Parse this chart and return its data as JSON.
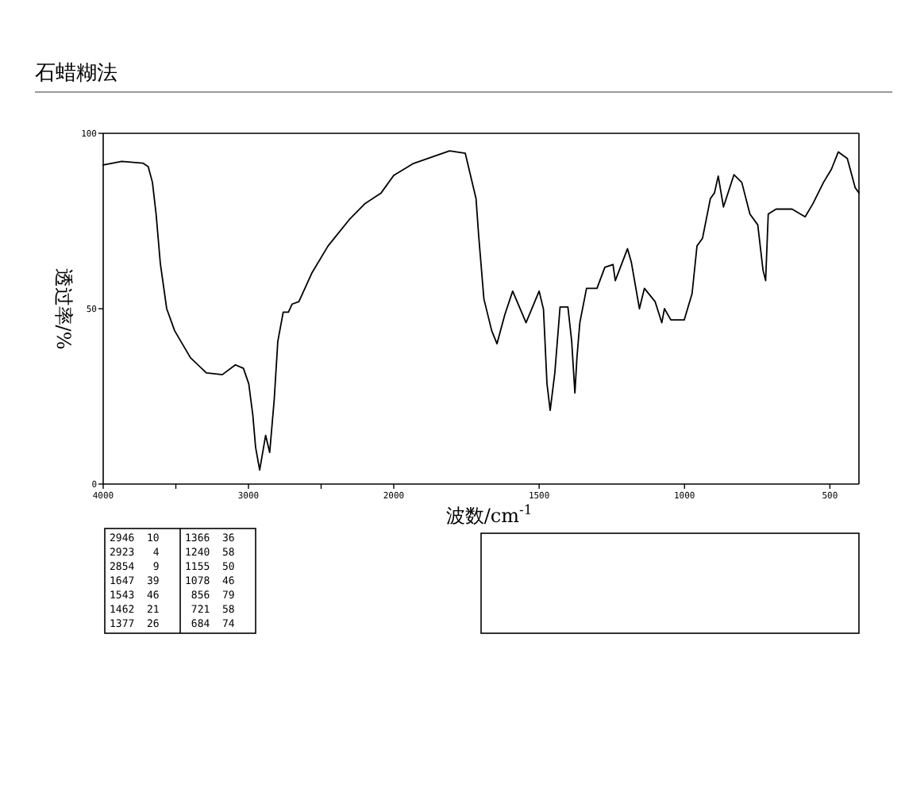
{
  "chart_data": [
    {
      "type": "line",
      "title": "石蜡糊法",
      "ylabel": "透过率/%",
      "xlim": [
        4000,
        2000
      ],
      "ylim": [
        0,
        100
      ],
      "xticks": [
        4000,
        {
          "value": 3500,
          "label": null
        },
        3000,
        {
          "value": 2500,
          "label": null
        },
        2000
      ],
      "yticks": [
        0,
        50,
        100
      ],
      "series": [
        {
          "color": "#000000",
          "x": [
            4000,
            3872,
            3727,
            3690,
            3661,
            3636,
            3607,
            3563,
            3508,
            3399,
            3290,
            3180,
            3090,
            3035,
            2998,
            2970,
            2951,
            2923,
            2882,
            2854,
            2823,
            2798,
            2761,
            2725,
            2700,
            2653,
            2562,
            2452,
            2306,
            2197,
            2087,
            2000
          ],
          "values": [
            91,
            92,
            91.5,
            90.5,
            86,
            77,
            63,
            50,
            43.7,
            36,
            31.7,
            31.2,
            34,
            33,
            28.6,
            19.6,
            10.5,
            4,
            13.9,
            9,
            24,
            40.7,
            49,
            49,
            51.3,
            52,
            60.3,
            67.9,
            75.4,
            80,
            83,
            88
          ]
        }
      ],
      "annotations": [
        "2946  10",
        "2923   4",
        "2854   9",
        "1647  39",
        "1543  46",
        "1462  21",
        "1377  26",
        "1366  36",
        "1240  58",
        "1155  50",
        "1078  46",
        " 856  79",
        " 721  58",
        " 684  74"
      ]
    },
    {
      "type": "line",
      "xlabel": "波数/cm$^{-1}$",
      "tick_labels": "x",
      "xlim": [
        2000,
        400
      ],
      "ylim": [
        0,
        100
      ],
      "xticks": [
        1500,
        1000,
        500
      ],
      "series": [
        {
          "color": "#000000",
          "x": [
            2000,
            1935,
            1808,
            1754,
            1717,
            1708,
            1690,
            1663,
            1645,
            1618,
            1591,
            1545,
            1500,
            1485,
            1473,
            1462,
            1446,
            1428,
            1401,
            1388,
            1377,
            1370,
            1360,
            1337,
            1301,
            1274,
            1246,
            1238,
            1196,
            1183,
            1155,
            1138,
            1101,
            1078,
            1069,
            1047,
            1001,
            974,
            957,
            938,
            911,
            897,
            884,
            866,
            830,
            803,
            775,
            748,
            730,
            721,
            712,
            685,
            630,
            585,
            558,
            522,
            495,
            471,
            440,
            413,
            400
          ],
          "values": [
            88,
            91.3,
            95,
            94.3,
            81.4,
            70.9,
            52.8,
            43.7,
            40,
            48.3,
            55,
            46,
            55,
            49.8,
            28.6,
            21,
            31.7,
            50.5,
            50.5,
            40.7,
            26,
            36,
            46,
            55.8,
            55.8,
            61.8,
            62.6,
            58,
            67.1,
            63.3,
            50,
            55.8,
            52,
            46,
            50,
            46.8,
            46.8,
            54.3,
            67.9,
            70.1,
            81.4,
            83,
            87.8,
            79,
            88.2,
            86,
            77,
            73.9,
            61,
            58,
            77,
            78.4,
            78.4,
            76.2,
            80,
            86,
            89.7,
            94.7,
            92.8,
            84.5,
            83
          ]
        }
      ]
    }
  ]
}
